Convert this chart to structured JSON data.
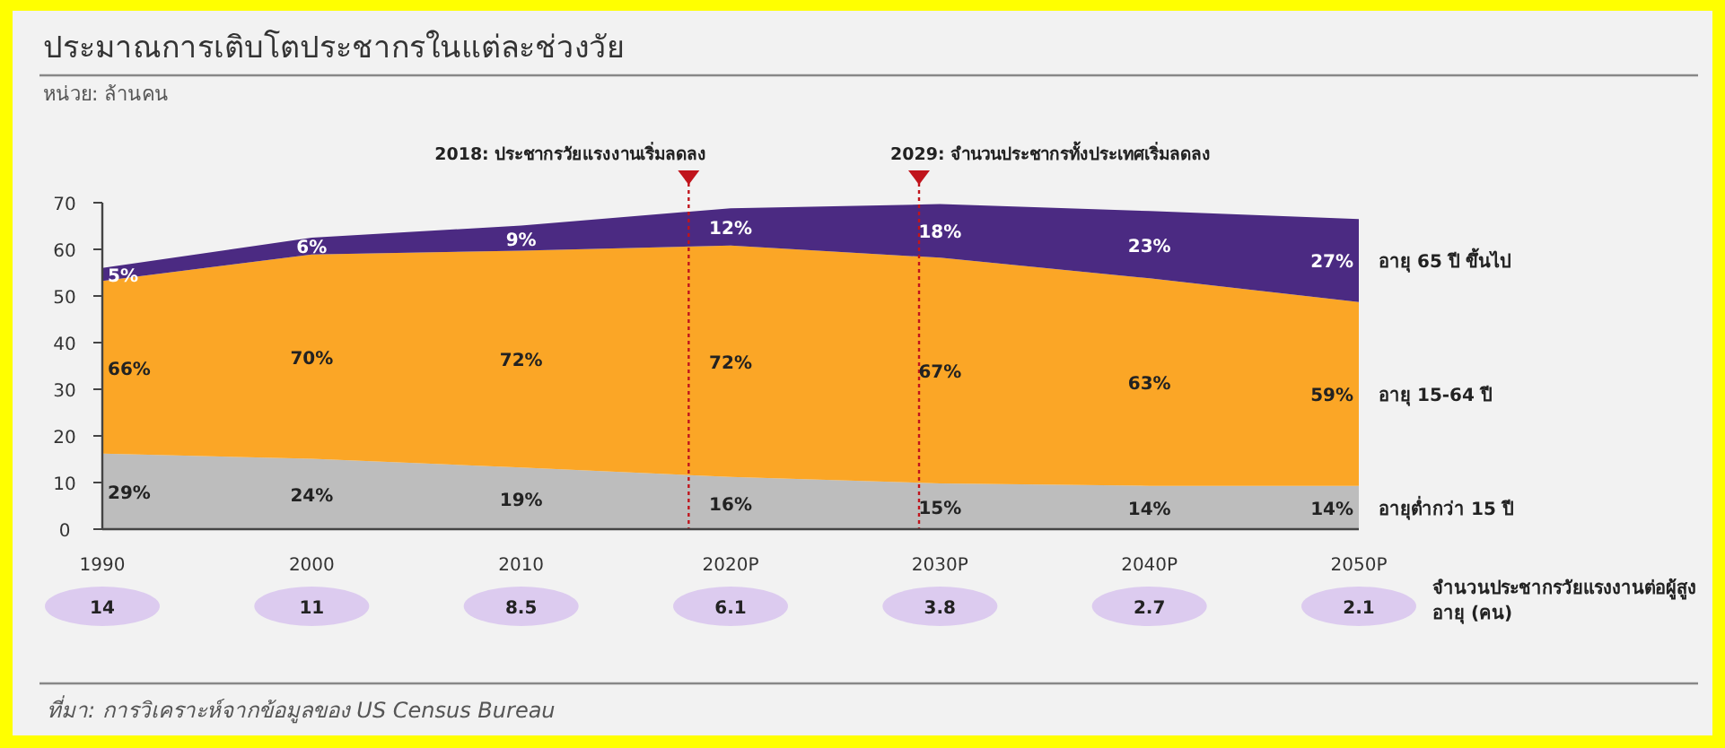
{
  "chart_data": {
    "type": "area",
    "stacked": true,
    "title": "ประมาณการเติบโตประชากรในแต่ละช่วงวัย",
    "subtitle": "หน่วย: ล้านคน",
    "x": [
      1990,
      2000,
      2010,
      2020,
      2030,
      2040,
      2050
    ],
    "xlim": [
      1990,
      2050
    ],
    "xticks": [
      1990,
      2000,
      2010,
      {
        "value": 2020,
        "label": "2020P"
      },
      {
        "value": 2030,
        "label": "2030P"
      },
      {
        "value": 2040,
        "label": "2040P"
      },
      {
        "value": 2050,
        "label": "2050P"
      }
    ],
    "ylim": [
      0,
      70
    ],
    "yticks": [
      0,
      10,
      20,
      30,
      40,
      50,
      60,
      70
    ],
    "series": [
      {
        "name": "อายุต่ำกว่า 15 ปี",
        "color": "#bdbdbd",
        "values": [
          16.2,
          15.1,
          13.2,
          11.2,
          9.8,
          9.3,
          9.3
        ]
      },
      {
        "name": "อายุ 15-64 ปี",
        "color": "#fba626",
        "values": [
          37,
          43.8,
          46.5,
          49.6,
          48.4,
          44.5,
          39.4
        ]
      },
      {
        "name": "อายุ 65 ปี ขึ้นไป",
        "color": "#4b2a82",
        "values": [
          2.8,
          3.6,
          5.4,
          8.0,
          11.5,
          14.4,
          17.8
        ]
      }
    ],
    "ref_lines": [
      {
        "axis": "x",
        "value": 2018,
        "label": "2018: ประชากรวัยแรงงานเริ่มลดลง",
        "color": "#c0141c",
        "line_style": "dotted"
      },
      {
        "axis": "x",
        "value": 2029,
        "label": "2029: จำนวนประชากรทั้งประเทศเริ่มลดลง",
        "color": "#c0141c",
        "line_style": "dotted"
      }
    ],
    "annotations": [
      "29%",
      "24%",
      "19%",
      "16%",
      "15%",
      "14%",
      "14%",
      "66%",
      "70%",
      "72%",
      "72%",
      "67%",
      "63%",
      "59%",
      "5%",
      "6%",
      "9%",
      "12%",
      "18%",
      "23%",
      "27%",
      "14",
      "11",
      "8.5",
      "6.1",
      "3.8",
      "2.7",
      "2.1",
      "จำนวนประชากรวัยแรงงานต่อผู้สูงอายุ (คน)",
      "ที่มา: การวิเคราะห์จากข้อมูลของ US Census Bureau"
    ]
  }
}
